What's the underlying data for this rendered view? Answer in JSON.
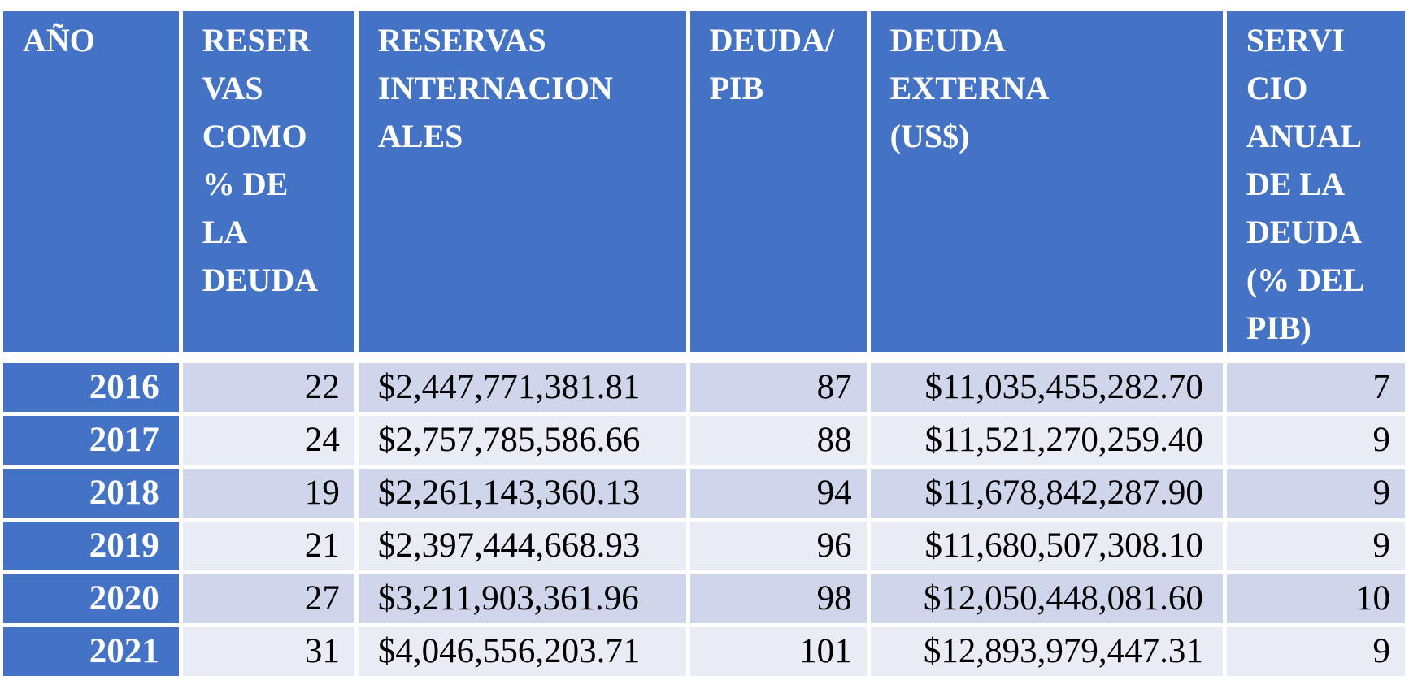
{
  "table": {
    "headers": [
      "AÑO",
      "RESERVAS COMO % DE LA DEUDA",
      "RESERVAS INTERNACIONALES",
      "DEUDA/ PIB",
      "DEUDA EXTERNA (US$)",
      "SERVICIO ANUAL DE LA DEUDA (% DEL PIB)"
    ],
    "header_lines": [
      [
        "AÑO"
      ],
      [
        "RESER",
        "VAS",
        "COMO",
        "% DE",
        "LA",
        "DEUDA"
      ],
      [
        "RESERVAS",
        "INTERNACION",
        "ALES"
      ],
      [
        "DEUDA/",
        "PIB"
      ],
      [
        "DEUDA",
        "EXTERNA",
        "(US$)"
      ],
      [
        "SERVI",
        "CIO",
        "ANUAL",
        "DE LA",
        "DEUDA",
        "(% DEL",
        "PIB)"
      ]
    ],
    "rows": [
      {
        "year": "2016",
        "reservas_pct": "22",
        "reservas": "$2,447,771,381.81",
        "deuda_pib": "87",
        "deuda_externa": "$11,035,455,282.70",
        "servicio": "7"
      },
      {
        "year": "2017",
        "reservas_pct": "24",
        "reservas": "$2,757,785,586.66",
        "deuda_pib": "88",
        "deuda_externa": "$11,521,270,259.40",
        "servicio": "9"
      },
      {
        "year": "2018",
        "reservas_pct": "19",
        "reservas": "$2,261,143,360.13",
        "deuda_pib": "94",
        "deuda_externa": "$11,678,842,287.90",
        "servicio": "9"
      },
      {
        "year": "2019",
        "reservas_pct": "21",
        "reservas": "$2,397,444,668.93",
        "deuda_pib": "96",
        "deuda_externa": "$11,680,507,308.10",
        "servicio": "9"
      },
      {
        "year": "2020",
        "reservas_pct": "27",
        "reservas": "$3,211,903,361.96",
        "deuda_pib": "98",
        "deuda_externa": "$12,050,448,081.60",
        "servicio": "10"
      },
      {
        "year": "2021",
        "reservas_pct": "31",
        "reservas": "$4,046,556,203.71",
        "deuda_pib": "101",
        "deuda_externa": "$12,893,979,447.31",
        "servicio": "9"
      }
    ],
    "colors": {
      "header_bg": "#4472c4",
      "header_text": "#ffffff",
      "row_band_1": "#cfd5ea",
      "row_band_2": "#e9ebf5"
    }
  }
}
